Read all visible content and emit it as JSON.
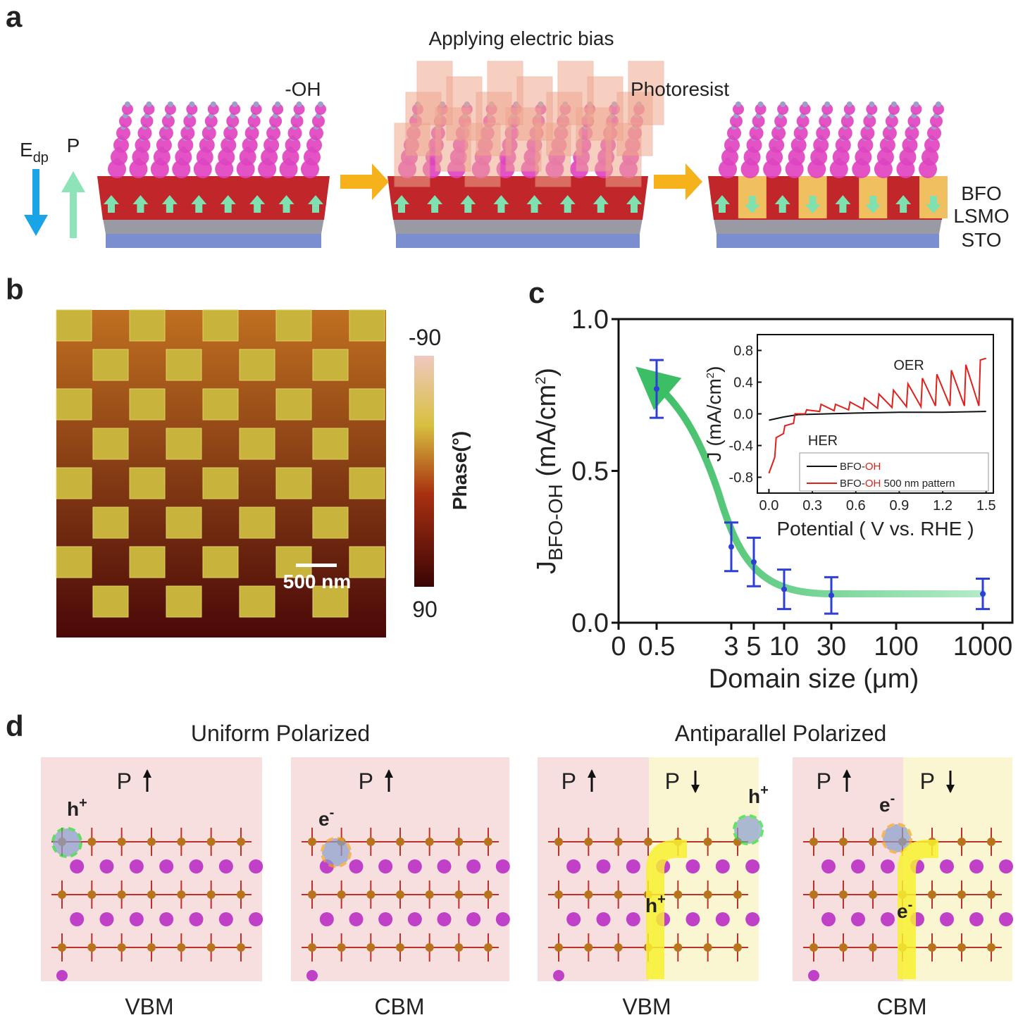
{
  "panels": {
    "a": {
      "label": "a",
      "title": "Applying electric bias",
      "group": "-OH",
      "photoresist": "Photoresist",
      "field": {
        "main": "E",
        "sub": "dp"
      },
      "polarization": "P",
      "layers": [
        "BFO",
        "LSMO",
        "STO"
      ]
    },
    "b": {
      "label": "b",
      "colorbar_top": "-90",
      "colorbar_bottom": "90",
      "colorbar_label": "Phase(°)",
      "scale_bar": "500 nm"
    },
    "c": {
      "label": "c"
    },
    "d": {
      "label": "d",
      "groups": [
        "Uniform Polarized",
        "Antiparallel Polarized"
      ],
      "views": [
        {
          "p": [
            "P"
          ],
          "carrier": {
            "base": "h",
            "charge": "+"
          },
          "state": "VBM"
        },
        {
          "p": [
            "P"
          ],
          "carrier": {
            "base": "e",
            "charge": "-"
          },
          "state": "CBM"
        },
        {
          "p": [
            "P",
            "P"
          ],
          "carrier": {
            "base": "h",
            "charge": "+"
          },
          "flow": {
            "base": "h",
            "charge": "+"
          },
          "state": "VBM"
        },
        {
          "p": [
            "P",
            "P"
          ],
          "carrier": {
            "base": "e",
            "charge": "-"
          },
          "flow": {
            "base": "e",
            "charge": "-"
          },
          "state": "CBM"
        }
      ]
    }
  },
  "chart_data": [
    {
      "type": "errorbar",
      "x_label": "Domain size (μm)",
      "y_label": {
        "main": "J",
        "sub": "BFO-OH",
        "unit": " (mA/cm",
        "sup": "2",
        "close": ")"
      },
      "categories": [
        "0",
        "0.5",
        "3",
        "5",
        "10",
        "30",
        "100",
        "1000"
      ],
      "values": [
        null,
        0.77,
        0.25,
        0.2,
        0.11,
        0.09,
        null,
        0.095
      ],
      "errors": [
        null,
        0.095,
        0.08,
        0.08,
        0.065,
        0.06,
        null,
        0.05
      ],
      "color": "#2e3fd6",
      "ylim": [
        0,
        1.0
      ],
      "yticks": [
        {
          "value": 0,
          "label": "0.0"
        },
        0.5,
        {
          "value": 1.0,
          "label": "1.0"
        }
      ]
    },
    {
      "type": "line",
      "x_label": "Potential ( V vs. RHE )",
      "y_label": {
        "main": "J",
        "unit": " (mA/cm",
        "sup": "2",
        "close": ")"
      },
      "annotations": [
        "OER",
        "HER"
      ],
      "xlim": [
        -0.08,
        1.55
      ],
      "ylim": [
        -1.0,
        1.0
      ],
      "xticks": [
        {
          "value": 0,
          "label": "0.0"
        },
        0.3,
        0.6,
        0.9,
        1.2,
        1.5
      ],
      "yticks": [
        -0.8,
        -0.4,
        {
          "value": 0,
          "label": "0.0"
        },
        0.4,
        0.8
      ],
      "highlight_color": "#e0201b",
      "series": [
        {
          "name": [
            "BFO-",
            "OH"
          ],
          "color": "#111111",
          "x": [
            0,
            0.1,
            0.2,
            0.4,
            0.6,
            0.9,
            1.2,
            1.5
          ],
          "values": [
            -0.08,
            -0.04,
            -0.01,
            0.0,
            0.01,
            0.02,
            0.02,
            0.03
          ]
        },
        {
          "name": [
            "BFO-",
            "OH",
            " 500 nm pattern"
          ],
          "color": "#e0201b",
          "x": [
            0,
            0.04,
            0.05,
            0.1,
            0.11,
            0.17,
            0.18,
            0.25,
            0.26,
            0.35,
            0.36,
            0.45,
            0.46,
            0.55,
            0.56,
            0.65,
            0.66,
            0.75,
            0.76,
            0.85,
            0.86,
            0.95,
            0.96,
            1.05,
            1.06,
            1.15,
            1.16,
            1.25,
            1.26,
            1.35,
            1.36,
            1.45,
            1.46,
            1.5
          ],
          "values": [
            -0.75,
            -0.55,
            -0.3,
            -0.25,
            -0.15,
            -0.12,
            0.0,
            0.0,
            0.05,
            0.03,
            0.12,
            0.04,
            0.12,
            0.05,
            0.15,
            0.06,
            0.2,
            0.07,
            0.25,
            0.08,
            0.3,
            0.09,
            0.38,
            0.09,
            0.45,
            0.1,
            0.5,
            0.1,
            0.55,
            0.1,
            0.62,
            0.1,
            0.68,
            0.7
          ]
        }
      ]
    }
  ]
}
